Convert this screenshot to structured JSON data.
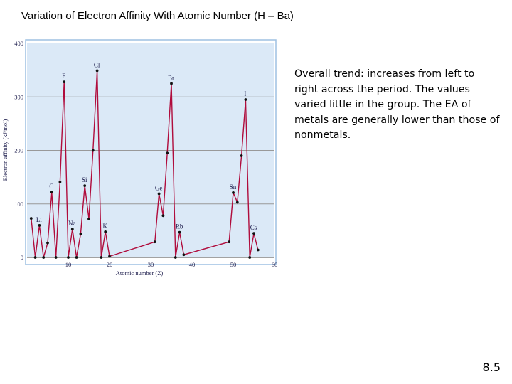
{
  "slide": {
    "title": "Variation of Electron Affinity With Atomic Number (H – Ba)",
    "trend_text": "Overall trend: increases from left to right across the period. The values varied little in the group. The EA of metals are generally lower than those of nonmetals.",
    "page_number": "8.5"
  },
  "colors": {
    "plot_background": "#dbe9f7",
    "frame_border": "#9dc0e2",
    "line": "#b00c3c",
    "marker": "#111111",
    "grid": "#999999"
  },
  "chart_data": {
    "type": "line",
    "title": "",
    "xlabel": "Atomic number (Z)",
    "ylabel": "Electron affinity (kJ/mol)",
    "xlim": [
      0,
      60
    ],
    "ylim": [
      0,
      400
    ],
    "x_ticks": [
      10,
      20,
      30,
      40,
      50,
      60
    ],
    "y_ticks": [
      0,
      100,
      200,
      300,
      400
    ],
    "grid": true,
    "series": [
      {
        "x": [
          1,
          2,
          3,
          4,
          5,
          6,
          7,
          8,
          9,
          10,
          11,
          12,
          13,
          14,
          15,
          16,
          17,
          18,
          19,
          20,
          31,
          32,
          33,
          34,
          35,
          36,
          37,
          38,
          49,
          50,
          51,
          52,
          53,
          54,
          55,
          56
        ],
        "y": [
          73,
          0,
          60,
          0,
          27,
          122,
          0,
          141,
          328,
          0,
          53,
          0,
          44,
          134,
          72,
          200,
          349,
          0,
          48,
          2,
          29,
          119,
          78,
          195,
          325,
          0,
          47,
          5,
          29,
          121,
          103,
          190,
          295,
          0,
          45,
          14
        ]
      }
    ],
    "annotations": [
      {
        "text": "Li",
        "x": 3,
        "y": 60
      },
      {
        "text": "C",
        "x": 6,
        "y": 122
      },
      {
        "text": "F",
        "x": 9,
        "y": 328
      },
      {
        "text": "Na",
        "x": 11,
        "y": 53
      },
      {
        "text": "Si",
        "x": 14,
        "y": 134
      },
      {
        "text": "Cl",
        "x": 17,
        "y": 349
      },
      {
        "text": "K",
        "x": 19,
        "y": 48
      },
      {
        "text": "Ge",
        "x": 32,
        "y": 119
      },
      {
        "text": "Br",
        "x": 35,
        "y": 325
      },
      {
        "text": "Rb",
        "x": 37,
        "y": 47
      },
      {
        "text": "Sn",
        "x": 50,
        "y": 121
      },
      {
        "text": "I",
        "x": 53,
        "y": 295
      },
      {
        "text": "Cs",
        "x": 55,
        "y": 45
      }
    ]
  }
}
